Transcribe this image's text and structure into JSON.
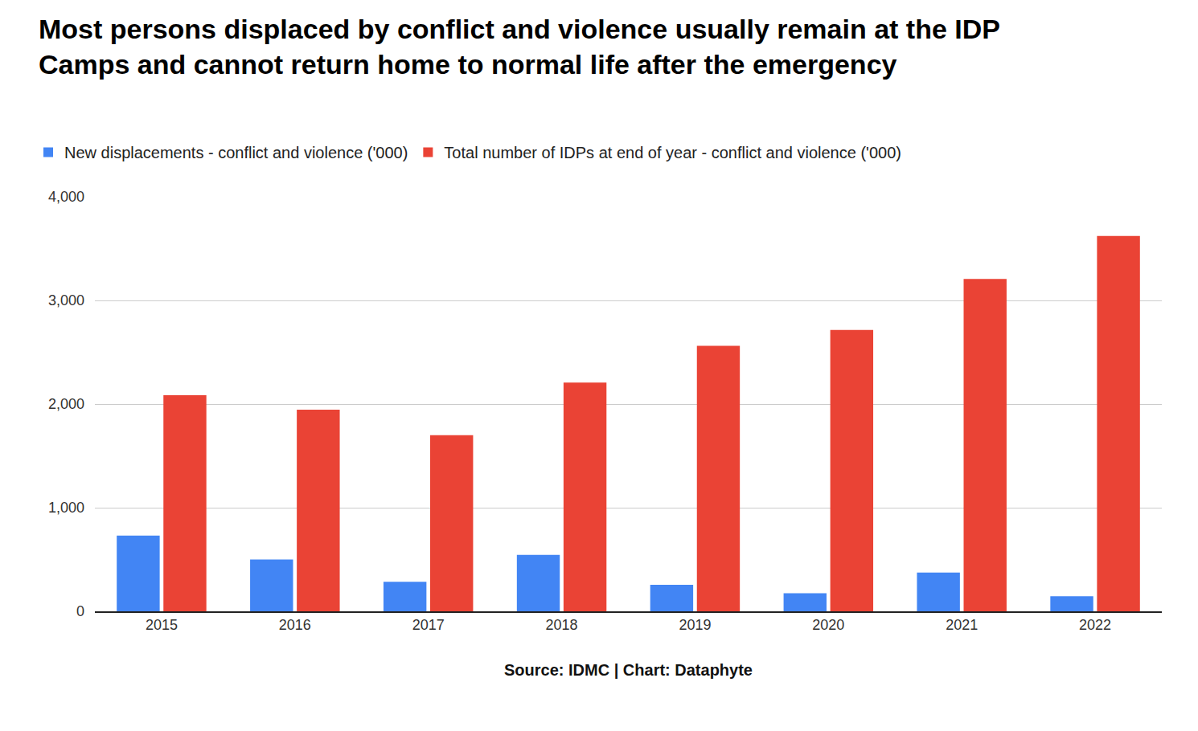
{
  "chart_data": {
    "type": "bar",
    "title": "Most persons displaced by conflict and violence usually remain at the IDP\nCamps and cannot return home to normal life after the emergency",
    "xlabel": "Source: IDMC | Chart: Dataphyte",
    "categories": [
      "2015",
      "2016",
      "2017",
      "2018",
      "2019",
      "2020",
      "2021",
      "2022"
    ],
    "series": [
      {
        "name": "New displacements - conflict and violence ('000)",
        "color": "#4285f4",
        "values": [
          730,
          500,
          285,
          545,
          255,
          175,
          375,
          145
        ]
      },
      {
        "name": "Total number of IDPs at end of year - conflict and violence ('000)",
        "color": "#ea4335",
        "values": [
          2085,
          1946,
          1700,
          2208,
          2562,
          2715,
          3208,
          3623
        ]
      }
    ],
    "ylim": [
      0,
      4000
    ],
    "yticks": [
      0,
      {
        "value": 1000,
        "label": "1,000"
      },
      {
        "value": 2000,
        "label": "2,000"
      },
      {
        "value": 3000,
        "label": "3,000"
      },
      {
        "value": 4000,
        "label": "4,000"
      }
    ],
    "grid": true,
    "legend": "top"
  }
}
